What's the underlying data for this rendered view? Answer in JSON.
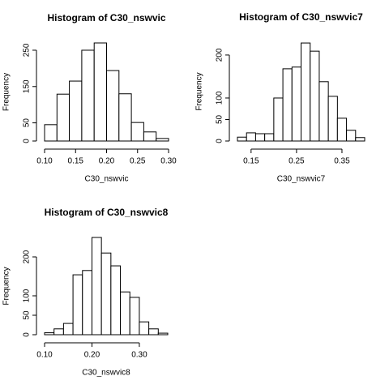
{
  "chart_data": [
    {
      "type": "histogram",
      "title": "Histogram of C30_nswvic",
      "x_label": "C30_nswvic",
      "y_label": "Frequency",
      "bins": [
        0.1,
        0.12,
        0.14,
        0.16,
        0.18,
        0.2,
        0.22,
        0.24,
        0.26,
        0.28,
        0.3
      ],
      "values": [
        45,
        129,
        165,
        250,
        270,
        194,
        130,
        51,
        25,
        7
      ],
      "xlim": [
        0.1,
        0.3
      ],
      "ylim": [
        0,
        270
      ],
      "xticks": [
        {
          "value": 0.1,
          "label": "0.10"
        },
        0.15,
        {
          "value": 0.2,
          "label": "0.20"
        },
        0.25,
        {
          "value": 0.3,
          "label": "0.30"
        }
      ],
      "yticks": [
        0,
        50,
        150,
        250
      ]
    },
    {
      "type": "histogram",
      "title": "Histogram of C30_nswvic7",
      "x_label": "C30_nswvic7",
      "y_label": "Frequency",
      "bins": [
        0.12,
        0.14,
        0.16,
        0.18,
        0.2,
        0.22,
        0.24,
        0.26,
        0.28,
        0.3,
        0.32,
        0.34,
        0.36,
        0.38,
        0.4
      ],
      "values": [
        9,
        19,
        17,
        17,
        100,
        168,
        172,
        228,
        209,
        138,
        104,
        53,
        25,
        8
      ],
      "xlim": [
        0.12,
        0.4
      ],
      "ylim": [
        0,
        230
      ],
      "xticks": [
        0.15,
        0.25,
        0.35
      ],
      "yticks": [
        0,
        50,
        100,
        200
      ]
    },
    {
      "type": "histogram",
      "title": "Histogram of C30_nswvic8",
      "x_label": "C30_nswvic8",
      "y_label": "Frequency",
      "bins": [
        0.1,
        0.12,
        0.14,
        0.16,
        0.18,
        0.2,
        0.22,
        0.24,
        0.26,
        0.28,
        0.3,
        0.32,
        0.34,
        0.36
      ],
      "values": [
        5,
        15,
        29,
        154,
        165,
        250,
        210,
        177,
        110,
        96,
        33,
        15,
        4
      ],
      "xlim": [
        0.1,
        0.36
      ],
      "ylim": [
        0,
        250
      ],
      "xticks": [
        {
          "value": 0.1,
          "label": "0.10"
        },
        {
          "value": 0.2,
          "label": "0.20"
        },
        {
          "value": 0.3,
          "label": "0.30"
        }
      ],
      "yticks": [
        0,
        50,
        100,
        200
      ]
    }
  ]
}
